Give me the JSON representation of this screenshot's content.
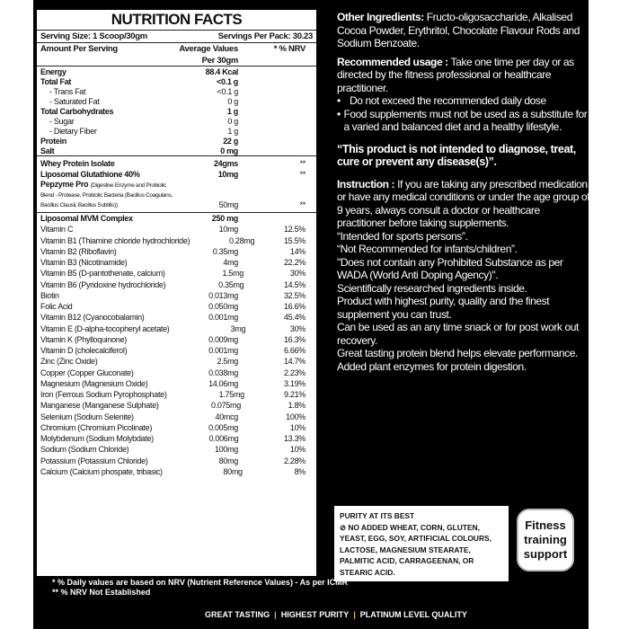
{
  "nutrition": {
    "title": "NUTRITION FACTS",
    "serving_size": "Serving Size: 1 Scoop/30gm",
    "servings_per_pack": "Servings Per Pack: 30.23",
    "col_amount": "Amount Per Serving",
    "col_avg": "Average Values",
    "col_per": "Per 30gm",
    "col_nrv": "* % NRV",
    "main_rows": [
      {
        "name": "Energy",
        "value": "88.4 Kcal",
        "nrv": "",
        "bold": true
      },
      {
        "name": "Total Fat",
        "value": "<0.1 g",
        "nrv": "",
        "bold": true
      },
      {
        "name": "- Trans Fat",
        "value": "<0.1 g",
        "nrv": "",
        "sub": true
      },
      {
        "name": "- Saturated Fat",
        "value": "0 g",
        "nrv": "",
        "sub": true
      },
      {
        "name": "Total Carbohydrates",
        "value": "1 g",
        "nrv": "",
        "bold": true
      },
      {
        "name": "- Sugar",
        "value": "0 g",
        "nrv": "",
        "sub": true
      },
      {
        "name": "- Dietary Fiber",
        "value": "1 g",
        "nrv": "",
        "sub": true
      },
      {
        "name": "Protein",
        "value": "22 g",
        "nrv": "",
        "bold": true
      },
      {
        "name": "Salt",
        "value": "0 mg",
        "nrv": "",
        "bold": true
      }
    ],
    "ingredients": [
      {
        "name": "Whey Protein Isolate",
        "value": "24gms",
        "nrv": "**"
      },
      {
        "name": "Liposomal Glutathione 40%",
        "value": "10mg",
        "nrv": "**"
      }
    ],
    "pepzyme": {
      "name": "Pepzyme Pro",
      "desc1": "(Digestive Enzyme and Probiotic",
      "desc2": "Blend - Protease, Probiotic Bacteria (Bacillus Coagulans,",
      "desc3": "Bacillus Clausii, Bacillus Subtilis))",
      "value": "50mg",
      "nrv": "**"
    },
    "mvm_rows": [
      {
        "name": "Liposomal MVM Complex",
        "value": "250 mg",
        "nrv": "",
        "bold": true
      },
      {
        "name": "Vitamin C",
        "value": "10mg",
        "nrv": "12.5%"
      },
      {
        "name": "Vitamin B1 (Thiamine chloride hydrochloride)",
        "value": "0.28mg",
        "nrv": "15.5%"
      },
      {
        "name": "Vitamin B2 (Riboflavin)",
        "value": "0.35mg",
        "nrv": "14%"
      },
      {
        "name": "Vitamin B3 (Nicotinamide)",
        "value": "4mg",
        "nrv": "22.2%"
      },
      {
        "name": "Vitamin B5 (D-pantothenate, calcium)",
        "value": "1.5mg",
        "nrv": "30%"
      },
      {
        "name": "Vitamin B6 (Pyridoxine hydrochloride)",
        "value": "0.35mg",
        "nrv": "14.5%"
      },
      {
        "name": "Biotin",
        "value": "0.013mg",
        "nrv": "32.5%"
      },
      {
        "name": "Folic Acid",
        "value": "0.050mg",
        "nrv": "16.6%"
      },
      {
        "name": "Vitamin B12 (Cyanocobalamin)",
        "value": "0.001mg",
        "nrv": "45.4%"
      },
      {
        "name": "Vitamin E (D-alpha-tocopheryl acetate)",
        "value": "3mg",
        "nrv": "30%"
      },
      {
        "name": "Vitamin K (Phylloquinone)",
        "value": "0.009mg",
        "nrv": "16.3%"
      },
      {
        "name": "Vitamin D (cholecalciferol)",
        "value": "0.001mg",
        "nrv": "6.66%"
      },
      {
        "name": "Zinc (Zinc Oxide)",
        "value": "2.5mg",
        "nrv": "14.7%"
      },
      {
        "name": "Copper (Copper Gluconate)",
        "value": "0.038mg",
        "nrv": "2.23%"
      },
      {
        "name": "Magnesium (Magnesium Oxide)",
        "value": "14.06mg",
        "nrv": "3.19%"
      },
      {
        "name": "Iron (Ferrous Sodium Pyrophosphate)",
        "value": "1.75mg",
        "nrv": "9.21%"
      },
      {
        "name": "Manganese (Manganese Sulphate)",
        "value": "0.075mg",
        "nrv": "1.8%"
      },
      {
        "name": "Selenium (Sodium Selenite)",
        "value": "40mcg",
        "nrv": "100%"
      },
      {
        "name": "Chromium (Chromium Picolinate)",
        "value": "0.005mg",
        "nrv": "10%"
      },
      {
        "name": "Molybdenum (Sodium Molybdate)",
        "value": "0.006mg",
        "nrv": "13.3%"
      },
      {
        "name": "Sodium (Sodium Chloride)",
        "value": "100mg",
        "nrv": "10%"
      },
      {
        "name": "Potassium (Potassium Chloride)",
        "value": "80mg",
        "nrv": "2.28%"
      },
      {
        "name": "Calcium (Calcium phospate, tribasic)",
        "value": "80mg",
        "nrv": "8%"
      }
    ],
    "footnote1": "*   % Daily values are based on NRV (Nutrient Reference Values) - As per ICMR",
    "footnote2": "**  % NRV Not Established"
  },
  "right": {
    "other_label": "Other Ingredients:",
    "other_text": " Fructo-oligosaccharide, Alkalised Cocoa Powder, Erythritol, Chocolate Flavour Rods and Sodium Benzoate.",
    "usage_label": "Recommended usage :",
    "usage_text": " Take one time per day or as directed by the fitness professional or healthcare practitioner.",
    "bullets": [
      "Do not exceed the recommended daily dose",
      "Food supplements must not be used as a substitute for a varied and balanced diet and a healthy lifestyle."
    ],
    "bullet_char": "•",
    "disclaimer": "“This product is not intended to diagnose, treat, cure or prevent any disease(s)”.",
    "instruction_label": "Instruction :",
    "instruction_text": " If you are taking any prescribed medication or have any medical conditions or under the age group of 9 years, always consult a doctor or healthcare practitioner before taking supplements.",
    "lines": [
      "“Intended for sports persons”.",
      "“Not Recommended for infants/children”.",
      "\"Does not contain any Prohibited Substance as per WADA (World Anti Doping Agency)\".",
      "Scientifically researched ingredients inside.",
      "Product with highest purity, quality and the finest supplement you can trust.",
      "Can be used as an any time snack or for post work out recovery.",
      "Great tasting protein blend helps elevate performance.",
      "Added plant enzymes for protein digestion."
    ]
  },
  "purity": {
    "title": "PURITY AT ITS BEST",
    "icon": "no-symbol-icon",
    "text": "NO ADDED WHEAT, CORN, GLUTEN, YEAST, EGG, SOY, ARTIFICIAL COLOURS, LACTOSE, MAGNESIUM STEARATE, PALMITIC ACID, CARRAGEENAN, OR STEARIC ACID."
  },
  "badge": {
    "line1": "Fitness",
    "line2": "training",
    "line3": "support"
  },
  "tagline": [
    "GREAT TASTING",
    "HIGHEST PURITY",
    "PLATINUM LEVEL QUALITY"
  ],
  "colors": {
    "background": "#000000",
    "panel": "#ffffff",
    "separator": "#e2b928"
  }
}
